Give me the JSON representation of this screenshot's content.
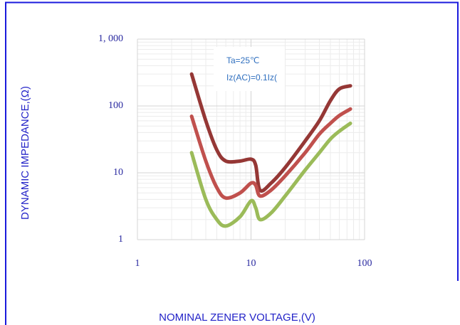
{
  "chart_data": {
    "type": "line",
    "xlabel": "NOMINAL ZENER VOLTAGE,(V)",
    "ylabel": "DYNAMIC IMPEDANCE,(Ω)",
    "annotations": [
      "Ta=25℃",
      "Iz(AC)=0.1Iz("
    ],
    "x": [
      3,
      4,
      5,
      6,
      8,
      10,
      11,
      12,
      15,
      20,
      30,
      40,
      50,
      60,
      75
    ],
    "series": [
      {
        "color": "#953735",
        "values": [
          300,
          60,
          22,
          15,
          15,
          16,
          13,
          5.5,
          7,
          12,
          30,
          60,
          120,
          180,
          200
        ]
      },
      {
        "color": "#c0504d",
        "values": [
          70,
          15,
          6,
          4.2,
          5,
          7,
          6.5,
          4.5,
          5.5,
          9,
          20,
          38,
          55,
          72,
          90
        ]
      },
      {
        "color": "#9bbb59",
        "values": [
          20,
          4,
          2,
          1.6,
          2.2,
          3.8,
          3,
          2.0,
          2.5,
          4.5,
          11,
          20,
          32,
          42,
          55
        ]
      }
    ],
    "xscale": "log",
    "yscale": "log",
    "xlim": [
      1,
      100
    ],
    "ylim": [
      1,
      1000
    ],
    "xticks": [
      1,
      10,
      100
    ],
    "yticks": [
      1,
      10,
      100,
      {
        "value": 1000,
        "label": "1, 000"
      }
    ],
    "xminor": [
      2,
      3,
      4,
      5,
      6,
      7,
      8,
      9,
      20,
      30,
      40,
      50,
      60,
      70,
      80,
      90
    ],
    "yminor": [
      2,
      3,
      4,
      5,
      6,
      7,
      8,
      9,
      20,
      30,
      40,
      50,
      60,
      70,
      80,
      90,
      200,
      300,
      400,
      500,
      600,
      700,
      800,
      900
    ],
    "grid": true
  }
}
